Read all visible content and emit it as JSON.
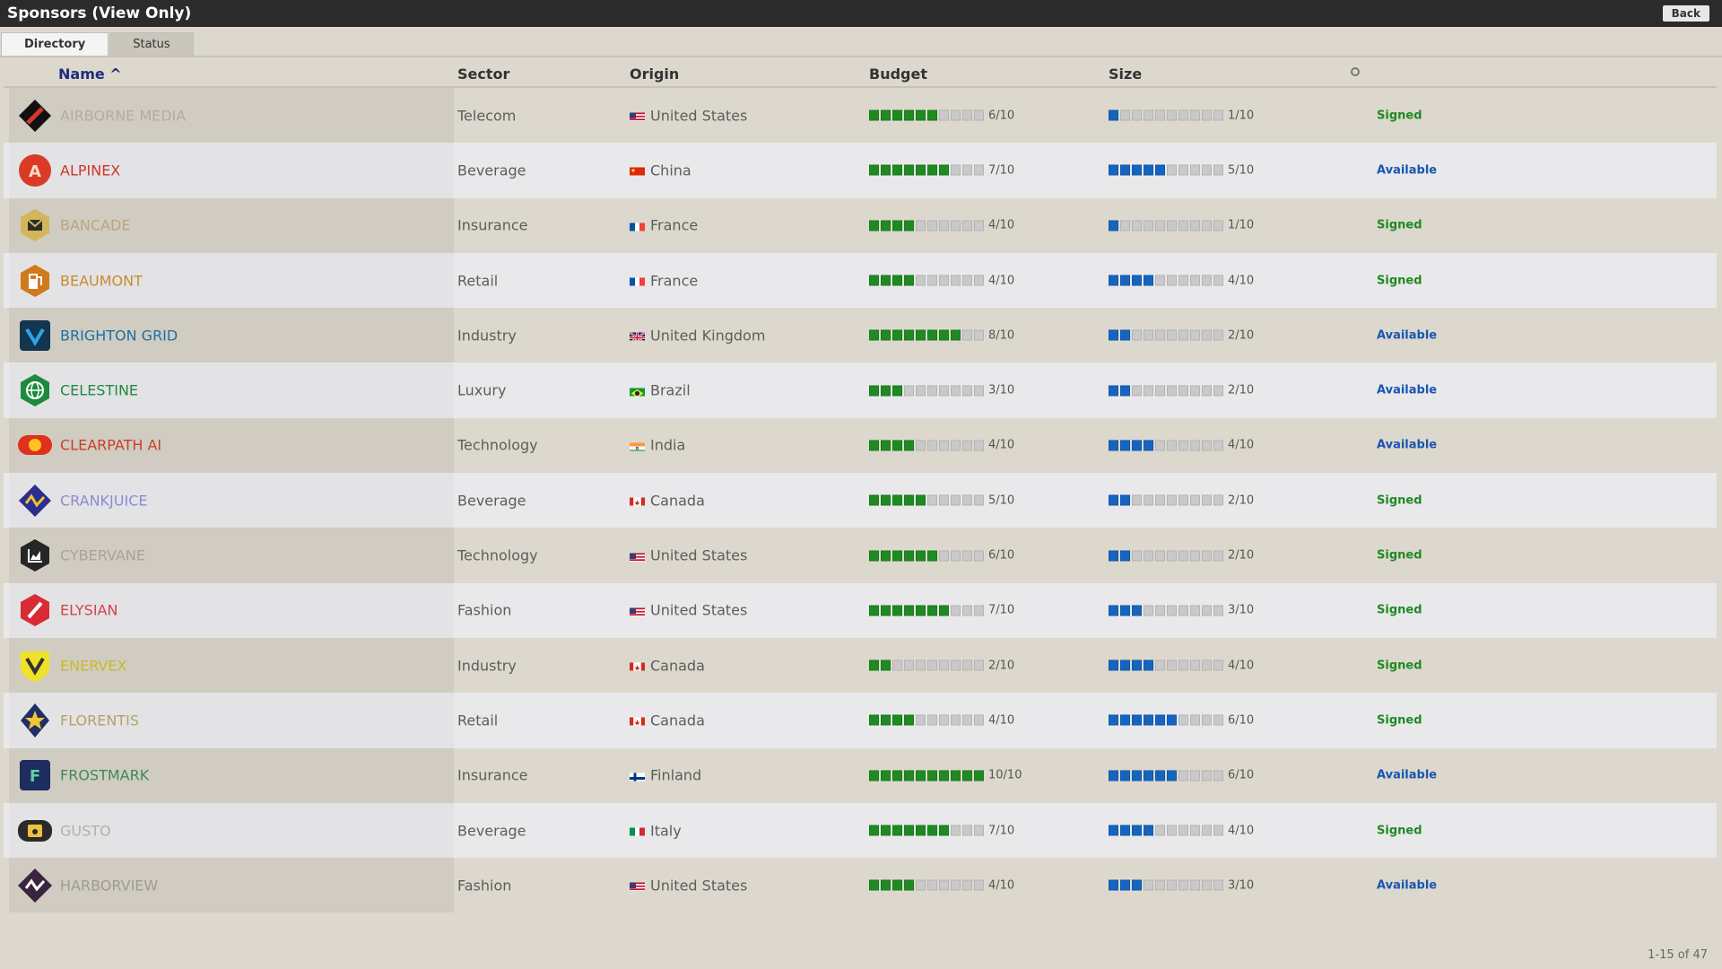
{
  "window": {
    "title": "Sponsors (View Only)",
    "back_label": "Back"
  },
  "tabs": [
    {
      "label": "Directory",
      "active": true
    },
    {
      "label": "Status",
      "active": false
    }
  ],
  "columns": {
    "name": "Name ^",
    "sector": "Sector",
    "origin": "Origin",
    "budget": "Budget",
    "size": "Size"
  },
  "colors": {
    "budget": "#1f8a22",
    "size": "#1565c0",
    "signed": "#1f8a22",
    "available": "#1a56b0"
  },
  "sponsors": [
    {
      "name": "Airborne Media",
      "name_color": "#b3aba2",
      "logo": "diamond-icon",
      "logo_colors": [
        "#111111",
        "#d23a2a"
      ],
      "sector": "Telecom",
      "origin": "United States",
      "flag": "us",
      "budget": 6,
      "budget_label": "6/10",
      "size": 1,
      "size_label": "1/10",
      "status": "Signed"
    },
    {
      "name": "Alpinex",
      "name_color": "#d0362a",
      "logo": "letter-a-icon",
      "logo_colors": [
        "#d93b25",
        "#ffd9c5"
      ],
      "sector": "Beverage",
      "origin": "China",
      "flag": "cn",
      "budget": 7,
      "budget_label": "7/10",
      "size": 5,
      "size_label": "5/10",
      "status": "Available"
    },
    {
      "name": "Bancade",
      "name_color": "#b6a67a",
      "logo": "envelope-icon",
      "logo_colors": [
        "#d3b55c",
        "#2b2b2b"
      ],
      "sector": "Insurance",
      "origin": "France",
      "flag": "fr",
      "budget": 4,
      "budget_label": "4/10",
      "size": 1,
      "size_label": "1/10",
      "status": "Signed"
    },
    {
      "name": "Beaumont",
      "name_color": "#c98a2d",
      "logo": "fuel-pump-icon",
      "logo_colors": [
        "#cf7a1d",
        "#ffffff"
      ],
      "sector": "Retail",
      "origin": "France",
      "flag": "fr",
      "budget": 4,
      "budget_label": "4/10",
      "size": 4,
      "size_label": "4/10",
      "status": "Signed"
    },
    {
      "name": "Brighton Grid",
      "name_color": "#1d6fa6",
      "logo": "checkmark-v-icon",
      "logo_colors": [
        "#123650",
        "#2ea3e8"
      ],
      "sector": "Industry",
      "origin": "United Kingdom",
      "flag": "gb",
      "budget": 8,
      "budget_label": "8/10",
      "size": 2,
      "size_label": "2/10",
      "status": "Available"
    },
    {
      "name": "Celestine",
      "name_color": "#1f8a42",
      "logo": "globe-icon",
      "logo_colors": [
        "#1d8a3c",
        "#ffffff"
      ],
      "sector": "Luxury",
      "origin": "Brazil",
      "flag": "br",
      "budget": 3,
      "budget_label": "3/10",
      "size": 2,
      "size_label": "2/10",
      "status": "Available"
    },
    {
      "name": "Clearpath AI",
      "name_color": "#c8402a",
      "logo": "sun-disc-icon",
      "logo_colors": [
        "#e0301e",
        "#ffc21e"
      ],
      "sector": "Technology",
      "origin": "India",
      "flag": "in",
      "budget": 4,
      "budget_label": "4/10",
      "size": 4,
      "size_label": "4/10",
      "status": "Available"
    },
    {
      "name": "Crankjuice",
      "name_color": "#8b8bd0",
      "logo": "wave-icon",
      "logo_colors": [
        "#2a2f8f",
        "#f2c230"
      ],
      "sector": "Beverage",
      "origin": "Canada",
      "flag": "ca",
      "budget": 5,
      "budget_label": "5/10",
      "size": 2,
      "size_label": "2/10",
      "status": "Signed"
    },
    {
      "name": "Cybervane",
      "name_color": "#a8a39a",
      "logo": "chart-icon",
      "logo_colors": [
        "#262626",
        "#ffffff"
      ],
      "sector": "Technology",
      "origin": "United States",
      "flag": "us",
      "budget": 6,
      "budget_label": "6/10",
      "size": 2,
      "size_label": "2/10",
      "status": "Signed"
    },
    {
      "name": "Elysian",
      "name_color": "#d4414a",
      "logo": "slash-icon",
      "logo_colors": [
        "#d82b35",
        "#ffffff"
      ],
      "sector": "Fashion",
      "origin": "United States",
      "flag": "us",
      "budget": 7,
      "budget_label": "7/10",
      "size": 3,
      "size_label": "3/10",
      "status": "Signed"
    },
    {
      "name": "Enervex",
      "name_color": "#c9b92c",
      "logo": "shield-v-icon",
      "logo_colors": [
        "#f0e12a",
        "#333333"
      ],
      "sector": "Industry",
      "origin": "Canada",
      "flag": "ca",
      "budget": 2,
      "budget_label": "2/10",
      "size": 4,
      "size_label": "4/10",
      "status": "Signed"
    },
    {
      "name": "Florentis",
      "name_color": "#b4a266",
      "logo": "star-icon",
      "logo_colors": [
        "#1e2f66",
        "#f1c533"
      ],
      "sector": "Retail",
      "origin": "Canada",
      "flag": "ca",
      "budget": 4,
      "budget_label": "4/10",
      "size": 6,
      "size_label": "6/10",
      "status": "Signed"
    },
    {
      "name": "Frostmark",
      "name_color": "#3d8a5a",
      "logo": "letter-f-icon",
      "logo_colors": [
        "#1d2d60",
        "#5fd39a"
      ],
      "sector": "Insurance",
      "origin": "Finland",
      "flag": "fi",
      "budget": 10,
      "budget_label": "10/10",
      "size": 6,
      "size_label": "6/10",
      "status": "Available"
    },
    {
      "name": "Gusto",
      "name_color": "#b4afa6",
      "logo": "radio-icon",
      "logo_colors": [
        "#2a2a2a",
        "#f0c040"
      ],
      "sector": "Beverage",
      "origin": "Italy",
      "flag": "it",
      "budget": 7,
      "budget_label": "7/10",
      "size": 4,
      "size_label": "4/10",
      "status": "Signed"
    },
    {
      "name": "Harborview",
      "name_color": "#9e9a94",
      "logo": "heart-wave-icon",
      "logo_colors": [
        "#3a2440",
        "#ffffff"
      ],
      "sector": "Fashion",
      "origin": "United States",
      "flag": "us",
      "budget": 4,
      "budget_label": "4/10",
      "size": 3,
      "size_label": "3/10",
      "status": "Available"
    }
  ],
  "pager": "1-15 of 47"
}
